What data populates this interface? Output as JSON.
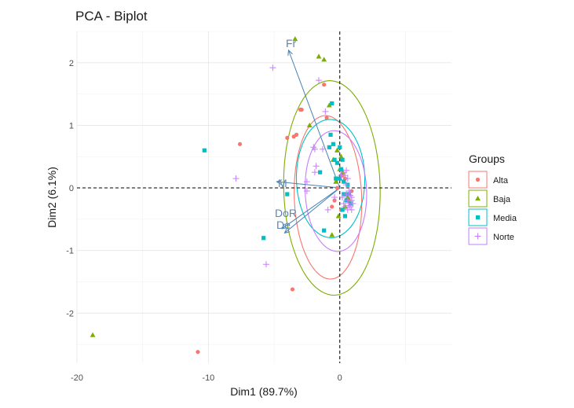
{
  "chart_data": {
    "type": "scatter",
    "title": "PCA - Biplot",
    "xlabel": "Dim1 (89.7%)",
    "ylabel": "Dim2 (6.1%)",
    "xlim": [
      -20,
      8.5
    ],
    "ylim": [
      -2.8,
      2.5
    ],
    "x_ticks": [
      -20,
      -10,
      0
    ],
    "y_ticks": [
      -2,
      -1,
      0,
      1,
      2
    ],
    "grid": true,
    "legend_position": "right",
    "legend_title": "Groups",
    "colors": {
      "Alta": "#f8766d",
      "Baja": "#7cae00",
      "Media": "#00bfc4",
      "Norte": "#c77cff",
      "arrow": "#4682b4"
    },
    "legend": [
      {
        "name": "Alta",
        "shape": "circle"
      },
      {
        "name": "Baja",
        "shape": "triangle"
      },
      {
        "name": "Media",
        "shape": "square"
      },
      {
        "name": "Norte",
        "shape": "plus"
      }
    ],
    "series": [
      {
        "name": "Alta",
        "points": [
          [
            -10.8,
            -2.62
          ],
          [
            -7.6,
            0.7
          ],
          [
            -3.6,
            -1.62
          ],
          [
            -3.0,
            1.25
          ],
          [
            -2.9,
            1.25
          ],
          [
            -4.0,
            0.8
          ],
          [
            -3.3,
            0.85
          ],
          [
            -3.5,
            0.82
          ],
          [
            -1.2,
            1.65
          ],
          [
            -1.0,
            1.12
          ],
          [
            0.2,
            0.2
          ],
          [
            0.3,
            0.1
          ],
          [
            -0.2,
            0.0
          ],
          [
            0.5,
            -0.1
          ],
          [
            0.7,
            -0.2
          ],
          [
            0.4,
            0.15
          ],
          [
            -0.4,
            -0.2
          ],
          [
            0.8,
            -0.25
          ],
          [
            0.1,
            -0.35
          ],
          [
            0.9,
            -0.05
          ],
          [
            0.6,
            0.05
          ],
          [
            -0.6,
            -0.3
          ]
        ]
      },
      {
        "name": "Baja",
        "points": [
          [
            -18.8,
            -2.35
          ],
          [
            -3.4,
            2.38
          ],
          [
            -1.6,
            2.1
          ],
          [
            -1.2,
            2.05
          ],
          [
            -2.3,
            1.0
          ],
          [
            -0.8,
            1.32
          ],
          [
            -0.2,
            0.6
          ],
          [
            -0.5,
            0.45
          ],
          [
            0.0,
            0.3
          ],
          [
            -0.6,
            -0.75
          ],
          [
            -0.1,
            -0.45
          ],
          [
            0.4,
            -0.3
          ],
          [
            0.2,
            0.25
          ],
          [
            -0.3,
            0.1
          ],
          [
            0.6,
            -0.15
          ],
          [
            0.1,
            0.5
          ]
        ]
      },
      {
        "name": "Media",
        "points": [
          [
            -10.3,
            0.6
          ],
          [
            -5.8,
            -0.8
          ],
          [
            -4.0,
            -0.1
          ],
          [
            -1.5,
            0.25
          ],
          [
            -1.2,
            -0.68
          ],
          [
            -0.7,
            0.85
          ],
          [
            -0.5,
            0.7
          ],
          [
            -0.8,
            0.65
          ],
          [
            -0.6,
            1.35
          ],
          [
            -0.2,
            0.4
          ],
          [
            0.0,
            0.65
          ],
          [
            0.1,
            0.3
          ],
          [
            -0.3,
            0.15
          ],
          [
            0.3,
            0.1
          ],
          [
            0.2,
            -0.35
          ],
          [
            0.4,
            -0.45
          ],
          [
            0.5,
            -0.2
          ],
          [
            0.6,
            0.05
          ],
          [
            -0.4,
            0.45
          ],
          [
            0.2,
            0.45
          ],
          [
            0.0,
            0.15
          ],
          [
            0.7,
            -0.1
          ],
          [
            0.8,
            -0.25
          ],
          [
            0.3,
            -0.1
          ]
        ]
      },
      {
        "name": "Norte",
        "points": [
          [
            -5.1,
            1.92
          ],
          [
            -7.9,
            0.15
          ],
          [
            -5.6,
            -1.22
          ],
          [
            -1.6,
            1.72
          ],
          [
            -1.1,
            1.22
          ],
          [
            -2.0,
            0.65
          ],
          [
            -1.9,
            0.62
          ],
          [
            -1.3,
            0.62
          ],
          [
            -1.8,
            0.35
          ],
          [
            -1.9,
            0.25
          ],
          [
            -2.5,
            -0.05
          ],
          [
            -2.5,
            0.1
          ],
          [
            -0.9,
            -0.35
          ],
          [
            -0.4,
            -0.15
          ],
          [
            0.3,
            -0.25
          ],
          [
            0.5,
            -0.1
          ],
          [
            0.6,
            -0.2
          ],
          [
            0.7,
            -0.28
          ],
          [
            0.8,
            -0.3
          ],
          [
            0.9,
            -0.2
          ],
          [
            0.7,
            -0.05
          ],
          [
            0.5,
            0.05
          ],
          [
            0.4,
            0.2
          ],
          [
            0.6,
            0.15
          ],
          [
            0.3,
            0.25
          ],
          [
            0.8,
            -0.12
          ],
          [
            0.9,
            -0.35
          ],
          [
            1.0,
            -0.25
          ],
          [
            0.9,
            -0.15
          ],
          [
            0.6,
            -0.35
          ],
          [
            0.4,
            -0.3
          ],
          [
            0.5,
            0.28
          ],
          [
            0.1,
            0.2
          ],
          [
            0.2,
            -0.15
          ]
        ]
      }
    ],
    "ellipses": [
      {
        "name": "Alta",
        "cx": -0.9,
        "cy": -0.15,
        "rx": 4.8,
        "ry": 1.35,
        "angle": 15
      },
      {
        "name": "Baja",
        "cx": -0.6,
        "cy": 0.0,
        "rx": 6.8,
        "ry": 1.75,
        "angle": 12
      },
      {
        "name": "Media",
        "cx": -0.7,
        "cy": 0.15,
        "rx": 4.9,
        "ry": 0.98,
        "angle": 16
      },
      {
        "name": "Norte",
        "cx": -0.3,
        "cy": -0.05,
        "rx": 4.6,
        "ry": 1.05,
        "angle": 24
      }
    ],
    "arrows": [
      {
        "label": "Fr",
        "x": -3.9,
        "y": 2.2
      },
      {
        "label": "M",
        "x": -4.8,
        "y": 0.1
      },
      {
        "label": "DoR",
        "x": -4.4,
        "y": -0.65
      },
      {
        "label": "De",
        "x": -4.2,
        "y": -0.72
      }
    ]
  }
}
